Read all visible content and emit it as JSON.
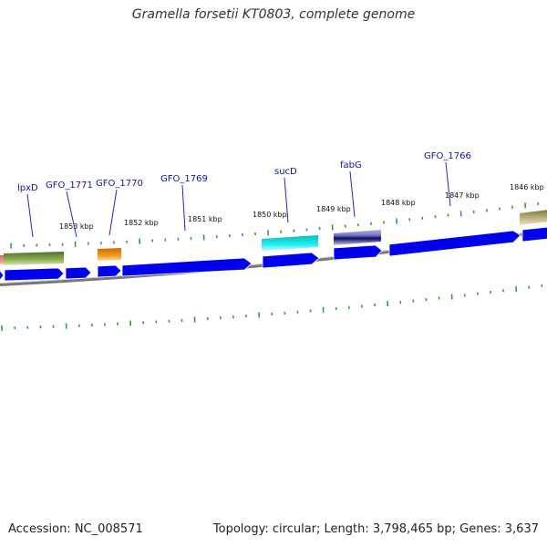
{
  "title": "Gramella forsetii KT0803, complete genome",
  "footer": {
    "accession": "Accession: NC_008571",
    "summary": "Topology: circular; Length: 3,798,465 bp; Genes: 3,637"
  },
  "kbp_labels": [
    {
      "id": "1853",
      "label": "1853 kbp"
    },
    {
      "id": "1852",
      "label": "1852 kbp"
    },
    {
      "id": "1851",
      "label": "1851 kbp"
    },
    {
      "id": "1850",
      "label": "1850 kbp"
    },
    {
      "id": "1849",
      "label": "1849 kbp"
    },
    {
      "id": "1848",
      "label": "1848 kbp"
    },
    {
      "id": "1847",
      "label": "1847 kbp"
    },
    {
      "id": "1846",
      "label": "1846 kbp"
    }
  ],
  "gene_labels": [
    {
      "id": "lpxD",
      "label": "lpxD"
    },
    {
      "id": "gfo1771",
      "label": "GFO_1771"
    },
    {
      "id": "gfo1770",
      "label": "GFO_1770"
    },
    {
      "id": "gfo1769",
      "label": "GFO_1769"
    },
    {
      "id": "sucD",
      "label": "sucD"
    },
    {
      "id": "fabG",
      "label": "fabG"
    },
    {
      "id": "gfo1766",
      "label": "GFO_1766"
    }
  ],
  "colors": {
    "gene_arrow": "#0000ee",
    "tick": "#3a9a3a",
    "label_line": "#2222cc",
    "backbone": "#888888",
    "feature_green": "#6b8e3a",
    "feature_orange": "#f08a10",
    "feature_cyan": "#19e6e6",
    "feature_purple": "#7a78c8",
    "feature_olive": "#a09a60",
    "feature_pink": "#f08080"
  }
}
